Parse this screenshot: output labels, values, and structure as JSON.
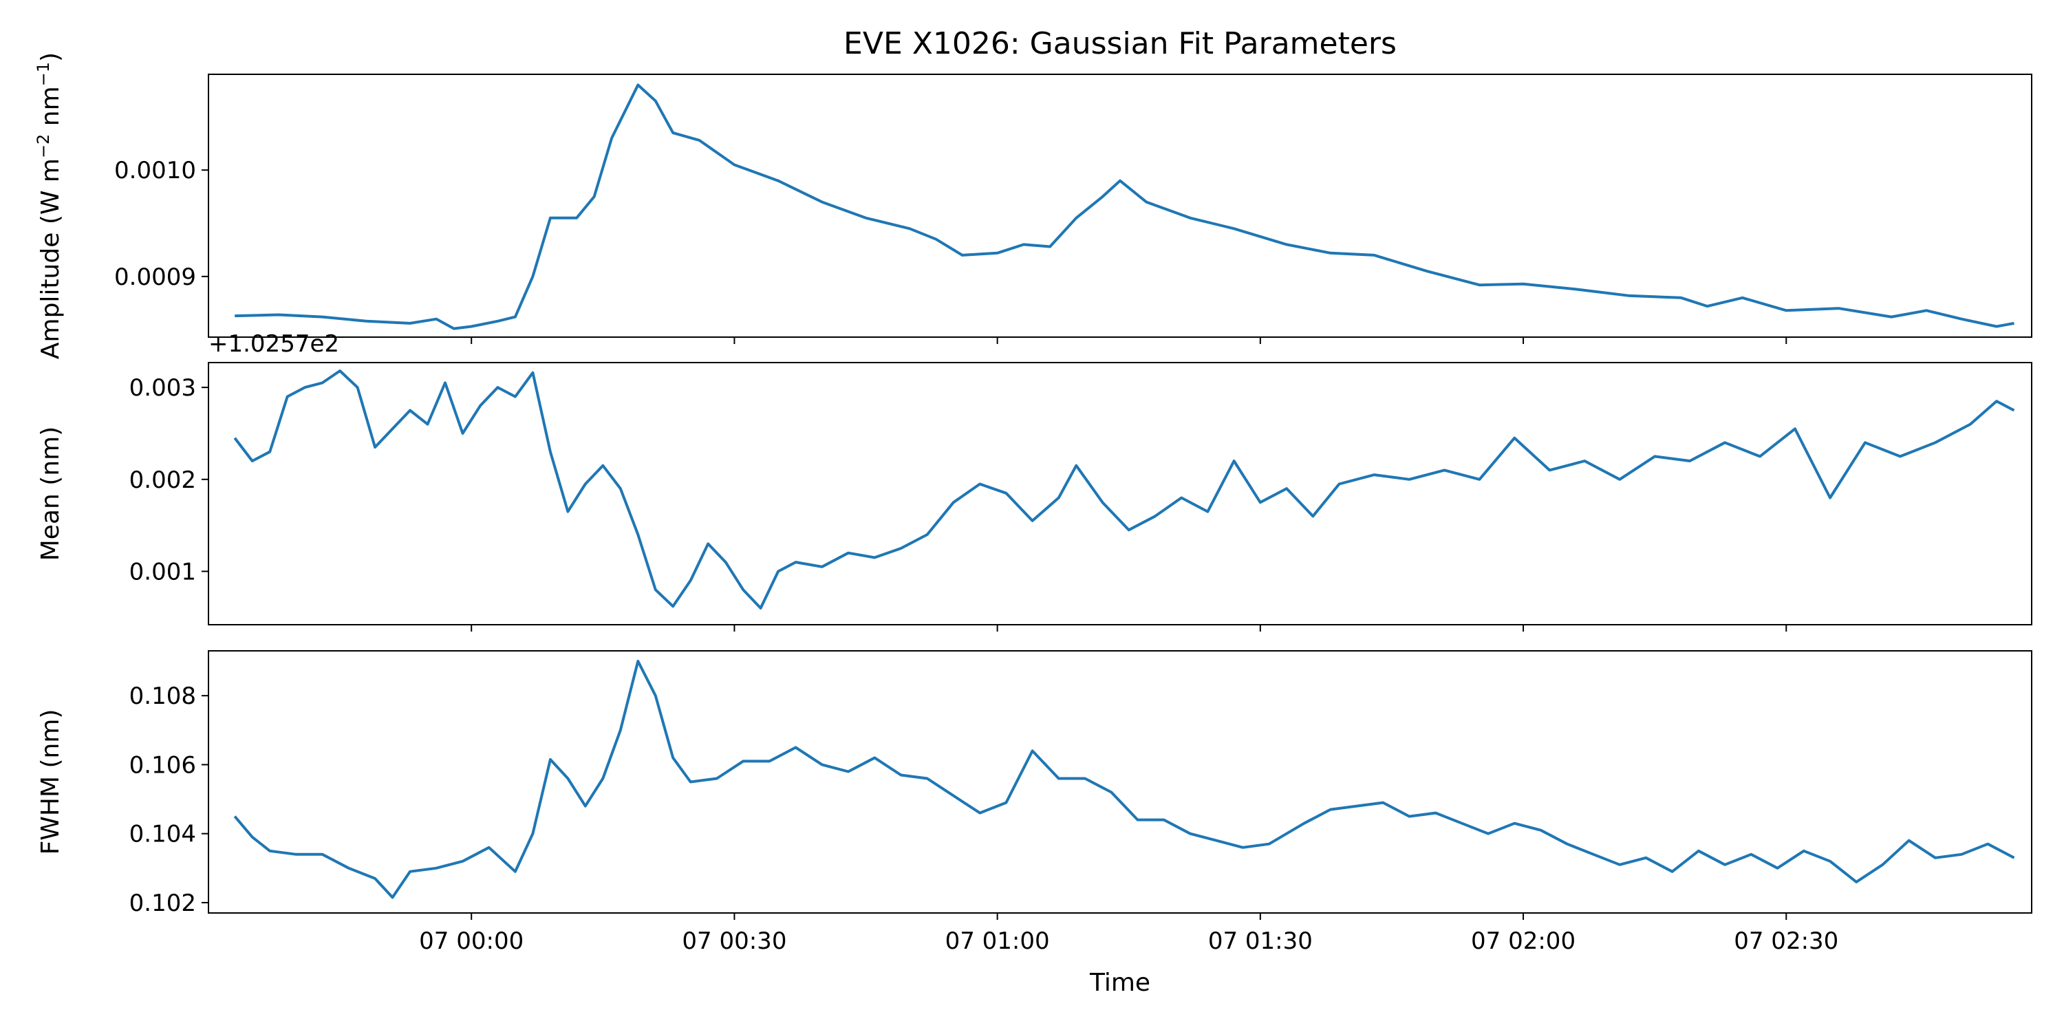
{
  "chart_data": {
    "type": "line",
    "title": "EVE X1026: Gaussian Fit Parameters",
    "xlabel": "Time",
    "x_range": [
      "06 23:30",
      "07 02:58"
    ],
    "x_ticks": [
      {
        "time": "07 00:00",
        "label": "07 00:00"
      },
      {
        "time": "07 00:30",
        "label": "07 00:30"
      },
      {
        "time": "07 01:00",
        "label": "07 01:00"
      },
      {
        "time": "07 01:30",
        "label": "07 01:30"
      },
      {
        "time": "07 02:00",
        "label": "07 02:00"
      },
      {
        "time": "07 02:30",
        "label": "07 02:30"
      }
    ],
    "line_color": "#1f77b4",
    "panels": [
      {
        "ylabel_main": "Amplitude (W m",
        "ylabel_sup1": "−2",
        "ylabel_mid": " nm",
        "ylabel_sup2": "−1",
        "ylabel_end": ")",
        "ylim": [
          0.000843,
          0.00109
        ],
        "yticks": [
          {
            "v": 0.0009,
            "label": "0.0009"
          },
          {
            "v": 0.001,
            "label": "0.0010"
          }
        ],
        "offset_text": "",
        "points": [
          [
            "06 23:33",
            0.000863
          ],
          [
            "06 23:38",
            0.000864
          ],
          [
            "06 23:43",
            0.000862
          ],
          [
            "06 23:48",
            0.000858
          ],
          [
            "06 23:53",
            0.000856
          ],
          [
            "06 23:56",
            0.00086
          ],
          [
            "06 23:58",
            0.000851
          ],
          [
            "07 00:00",
            0.000853
          ],
          [
            "07 00:03",
            0.000858
          ],
          [
            "07 00:05",
            0.000862
          ],
          [
            "07 00:07",
            0.0009
          ],
          [
            "07 00:09",
            0.000955
          ],
          [
            "07 00:12",
            0.000955
          ],
          [
            "07 00:14",
            0.000975
          ],
          [
            "07 00:16",
            0.00103
          ],
          [
            "07 00:19",
            0.00108
          ],
          [
            "07 00:21",
            0.001065
          ],
          [
            "07 00:23",
            0.001035
          ],
          [
            "07 00:26",
            0.001028
          ],
          [
            "07 00:30",
            0.001005
          ],
          [
            "07 00:35",
            0.00099
          ],
          [
            "07 00:40",
            0.00097
          ],
          [
            "07 00:45",
            0.000955
          ],
          [
            "07 00:50",
            0.000945
          ],
          [
            "07 00:53",
            0.000935
          ],
          [
            "07 00:56",
            0.00092
          ],
          [
            "07 01:00",
            0.000922
          ],
          [
            "07 01:03",
            0.00093
          ],
          [
            "07 01:06",
            0.000928
          ],
          [
            "07 01:09",
            0.000955
          ],
          [
            "07 01:12",
            0.000975
          ],
          [
            "07 01:14",
            0.00099
          ],
          [
            "07 01:17",
            0.00097
          ],
          [
            "07 01:22",
            0.000955
          ],
          [
            "07 01:27",
            0.000945
          ],
          [
            "07 01:33",
            0.00093
          ],
          [
            "07 01:38",
            0.000922
          ],
          [
            "07 01:43",
            0.00092
          ],
          [
            "07 01:49",
            0.000905
          ],
          [
            "07 01:55",
            0.000892
          ],
          [
            "07 02:00",
            0.000893
          ],
          [
            "07 02:06",
            0.000888
          ],
          [
            "07 02:12",
            0.000882
          ],
          [
            "07 02:18",
            0.00088
          ],
          [
            "07 02:21",
            0.000872
          ],
          [
            "07 02:25",
            0.00088
          ],
          [
            "07 02:30",
            0.000868
          ],
          [
            "07 02:36",
            0.00087
          ],
          [
            "07 02:42",
            0.000862
          ],
          [
            "07 02:46",
            0.000868
          ],
          [
            "07 02:50",
            0.00086
          ],
          [
            "07 02:54",
            0.000853
          ],
          [
            "07 02:56",
            0.000856
          ]
        ]
      },
      {
        "ylabel_main": "Mean (nm)",
        "ylim": [
          0.00042,
          0.00327
        ],
        "yticks": [
          {
            "v": 0.001,
            "label": "0.001"
          },
          {
            "v": 0.002,
            "label": "0.002"
          },
          {
            "v": 0.003,
            "label": "0.003"
          }
        ],
        "offset_text": "+1.0257e2",
        "points": [
          [
            "06 23:33",
            0.00245
          ],
          [
            "06 23:35",
            0.0022
          ],
          [
            "06 23:37",
            0.0023
          ],
          [
            "06 23:39",
            0.0029
          ],
          [
            "06 23:41",
            0.003
          ],
          [
            "06 23:43",
            0.00305
          ],
          [
            "06 23:45",
            0.00318
          ],
          [
            "06 23:47",
            0.003
          ],
          [
            "06 23:49",
            0.00235
          ],
          [
            "06 23:51",
            0.00255
          ],
          [
            "06 23:53",
            0.00275
          ],
          [
            "06 23:55",
            0.0026
          ],
          [
            "06 23:57",
            0.00305
          ],
          [
            "06 23:59",
            0.0025
          ],
          [
            "07 00:01",
            0.0028
          ],
          [
            "07 00:03",
            0.003
          ],
          [
            "07 00:05",
            0.0029
          ],
          [
            "07 00:07",
            0.00316
          ],
          [
            "07 00:09",
            0.0023
          ],
          [
            "07 00:11",
            0.00165
          ],
          [
            "07 00:13",
            0.00195
          ],
          [
            "07 00:15",
            0.00215
          ],
          [
            "07 00:17",
            0.0019
          ],
          [
            "07 00:19",
            0.0014
          ],
          [
            "07 00:21",
            0.0008
          ],
          [
            "07 00:23",
            0.00062
          ],
          [
            "07 00:25",
            0.0009
          ],
          [
            "07 00:27",
            0.0013
          ],
          [
            "07 00:29",
            0.0011
          ],
          [
            "07 00:31",
            0.0008
          ],
          [
            "07 00:33",
            0.0006
          ],
          [
            "07 00:35",
            0.001
          ],
          [
            "07 00:37",
            0.0011
          ],
          [
            "07 00:40",
            0.00105
          ],
          [
            "07 00:43",
            0.0012
          ],
          [
            "07 00:46",
            0.00115
          ],
          [
            "07 00:49",
            0.00125
          ],
          [
            "07 00:52",
            0.0014
          ],
          [
            "07 00:55",
            0.00175
          ],
          [
            "07 00:58",
            0.00195
          ],
          [
            "07 01:01",
            0.00185
          ],
          [
            "07 01:04",
            0.00155
          ],
          [
            "07 01:07",
            0.0018
          ],
          [
            "07 01:09",
            0.00215
          ],
          [
            "07 01:12",
            0.00175
          ],
          [
            "07 01:15",
            0.00145
          ],
          [
            "07 01:18",
            0.0016
          ],
          [
            "07 01:21",
            0.0018
          ],
          [
            "07 01:24",
            0.00165
          ],
          [
            "07 01:27",
            0.0022
          ],
          [
            "07 01:30",
            0.00175
          ],
          [
            "07 01:33",
            0.0019
          ],
          [
            "07 01:36",
            0.0016
          ],
          [
            "07 01:39",
            0.00195
          ],
          [
            "07 01:43",
            0.00205
          ],
          [
            "07 01:47",
            0.002
          ],
          [
            "07 01:51",
            0.0021
          ],
          [
            "07 01:55",
            0.002
          ],
          [
            "07 01:59",
            0.00245
          ],
          [
            "07 02:03",
            0.0021
          ],
          [
            "07 02:07",
            0.0022
          ],
          [
            "07 02:11",
            0.002
          ],
          [
            "07 02:15",
            0.00225
          ],
          [
            "07 02:19",
            0.0022
          ],
          [
            "07 02:23",
            0.0024
          ],
          [
            "07 02:27",
            0.00225
          ],
          [
            "07 02:31",
            0.00255
          ],
          [
            "07 02:35",
            0.0018
          ],
          [
            "07 02:39",
            0.0024
          ],
          [
            "07 02:43",
            0.00225
          ],
          [
            "07 02:47",
            0.0024
          ],
          [
            "07 02:51",
            0.0026
          ],
          [
            "07 02:54",
            0.00285
          ],
          [
            "07 02:56",
            0.00275
          ]
        ]
      },
      {
        "ylabel_main": "FWHM (nm)",
        "ylim": [
          0.1017,
          0.1093
        ],
        "yticks": [
          {
            "v": 0.102,
            "label": "0.102"
          },
          {
            "v": 0.104,
            "label": "0.104"
          },
          {
            "v": 0.106,
            "label": "0.106"
          },
          {
            "v": 0.108,
            "label": "0.108"
          }
        ],
        "offset_text": "",
        "points": [
          [
            "06 23:33",
            0.1045
          ],
          [
            "06 23:35",
            0.1039
          ],
          [
            "06 23:37",
            0.1035
          ],
          [
            "06 23:40",
            0.1034
          ],
          [
            "06 23:43",
            0.1034
          ],
          [
            "06 23:46",
            0.103
          ],
          [
            "06 23:49",
            0.1027
          ],
          [
            "06 23:51",
            0.10215
          ],
          [
            "06 23:53",
            0.1029
          ],
          [
            "06 23:56",
            0.103
          ],
          [
            "06 23:59",
            0.1032
          ],
          [
            "07 00:02",
            0.1036
          ],
          [
            "07 00:05",
            0.1029
          ],
          [
            "07 00:07",
            0.104
          ],
          [
            "07 00:09",
            0.10615
          ],
          [
            "07 00:11",
            0.1056
          ],
          [
            "07 00:13",
            0.1048
          ],
          [
            "07 00:15",
            0.1056
          ],
          [
            "07 00:17",
            0.107
          ],
          [
            "07 00:19",
            0.109
          ],
          [
            "07 00:21",
            0.108
          ],
          [
            "07 00:23",
            0.1062
          ],
          [
            "07 00:25",
            0.1055
          ],
          [
            "07 00:28",
            0.1056
          ],
          [
            "07 00:31",
            0.1061
          ],
          [
            "07 00:34",
            0.1061
          ],
          [
            "07 00:37",
            0.1065
          ],
          [
            "07 00:40",
            0.106
          ],
          [
            "07 00:43",
            0.1058
          ],
          [
            "07 00:46",
            0.1062
          ],
          [
            "07 00:49",
            0.1057
          ],
          [
            "07 00:52",
            0.1056
          ],
          [
            "07 00:55",
            0.1051
          ],
          [
            "07 00:58",
            0.1046
          ],
          [
            "07 01:01",
            0.1049
          ],
          [
            "07 01:04",
            0.1064
          ],
          [
            "07 01:07",
            0.1056
          ],
          [
            "07 01:10",
            0.1056
          ],
          [
            "07 01:13",
            0.1052
          ],
          [
            "07 01:16",
            0.1044
          ],
          [
            "07 01:19",
            0.1044
          ],
          [
            "07 01:22",
            0.104
          ],
          [
            "07 01:25",
            0.1038
          ],
          [
            "07 01:28",
            0.1036
          ],
          [
            "07 01:31",
            0.1037
          ],
          [
            "07 01:35",
            0.1043
          ],
          [
            "07 01:38",
            0.1047
          ],
          [
            "07 01:41",
            0.1048
          ],
          [
            "07 01:44",
            0.1049
          ],
          [
            "07 01:47",
            0.1045
          ],
          [
            "07 01:50",
            0.1046
          ],
          [
            "07 01:53",
            0.1043
          ],
          [
            "07 01:56",
            0.104
          ],
          [
            "07 01:59",
            0.1043
          ],
          [
            "07 02:02",
            0.1041
          ],
          [
            "07 02:05",
            0.1037
          ],
          [
            "07 02:08",
            0.1034
          ],
          [
            "07 02:11",
            0.1031
          ],
          [
            "07 02:14",
            0.1033
          ],
          [
            "07 02:17",
            0.1029
          ],
          [
            "07 02:20",
            0.1035
          ],
          [
            "07 02:23",
            0.1031
          ],
          [
            "07 02:26",
            0.1034
          ],
          [
            "07 02:29",
            0.103
          ],
          [
            "07 02:32",
            0.1035
          ],
          [
            "07 02:35",
            0.1032
          ],
          [
            "07 02:38",
            0.1026
          ],
          [
            "07 02:41",
            0.1031
          ],
          [
            "07 02:44",
            0.1038
          ],
          [
            "07 02:47",
            0.1033
          ],
          [
            "07 02:50",
            0.1034
          ],
          [
            "07 02:53",
            0.1037
          ],
          [
            "07 02:56",
            0.1033
          ]
        ]
      }
    ]
  }
}
